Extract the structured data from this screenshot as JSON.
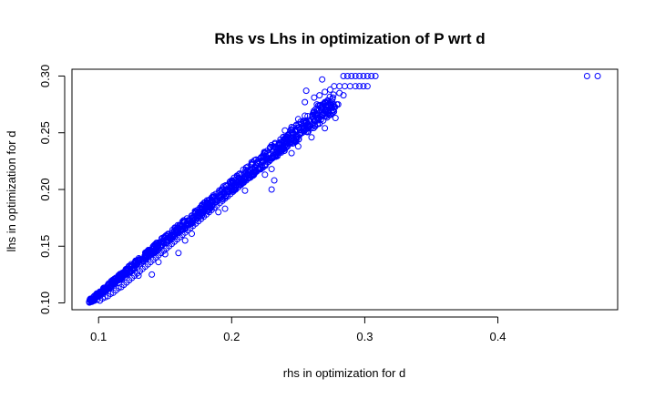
{
  "chart_data": {
    "type": "scatter",
    "title": "Rhs vs Lhs in optimization of P wrt d",
    "xlabel": "rhs in optimization for d",
    "ylabel": "lhs in optimization for d",
    "xlim": [
      0.08,
      0.49
    ],
    "ylim": [
      0.094,
      0.306
    ],
    "x_ticks": [
      0.1,
      0.2,
      0.3,
      0.4
    ],
    "x_tick_labels": [
      "0.1",
      "0.2",
      "0.3",
      "0.4"
    ],
    "y_ticks": [
      0.1,
      0.15,
      0.2,
      0.25,
      0.3
    ],
    "y_tick_labels": [
      "0.10",
      "0.15",
      "0.20",
      "0.25",
      "0.30"
    ],
    "grid": false,
    "legend": "none",
    "marker": "open-circle",
    "point_color": "#0000ff",
    "series": [
      {
        "points": [
          [
            0.093,
            0.101
          ],
          [
            0.095,
            0.101
          ],
          [
            0.097,
            0.102
          ],
          [
            0.099,
            0.103
          ],
          [
            0.101,
            0.102
          ],
          [
            0.103,
            0.104
          ],
          [
            0.105,
            0.105
          ],
          [
            0.107,
            0.106
          ],
          [
            0.109,
            0.108
          ],
          [
            0.111,
            0.109
          ],
          [
            0.113,
            0.111
          ],
          [
            0.115,
            0.113
          ],
          [
            0.117,
            0.114
          ],
          [
            0.119,
            0.116
          ],
          [
            0.121,
            0.118
          ],
          [
            0.123,
            0.12
          ],
          [
            0.125,
            0.122
          ],
          [
            0.127,
            0.124
          ],
          [
            0.129,
            0.126
          ],
          [
            0.131,
            0.128
          ],
          [
            0.133,
            0.13
          ],
          [
            0.135,
            0.132
          ],
          [
            0.137,
            0.134
          ],
          [
            0.139,
            0.136
          ],
          [
            0.141,
            0.138
          ],
          [
            0.143,
            0.14
          ],
          [
            0.145,
            0.142
          ],
          [
            0.147,
            0.144
          ],
          [
            0.149,
            0.146
          ],
          [
            0.151,
            0.148
          ],
          [
            0.153,
            0.15
          ],
          [
            0.155,
            0.152
          ],
          [
            0.157,
            0.154
          ],
          [
            0.159,
            0.156
          ],
          [
            0.161,
            0.158
          ],
          [
            0.163,
            0.16
          ],
          [
            0.165,
            0.162
          ],
          [
            0.167,
            0.164
          ],
          [
            0.169,
            0.166
          ],
          [
            0.171,
            0.168
          ],
          [
            0.173,
            0.17
          ],
          [
            0.175,
            0.172
          ],
          [
            0.177,
            0.174
          ],
          [
            0.179,
            0.176
          ],
          [
            0.181,
            0.178
          ],
          [
            0.183,
            0.18
          ],
          [
            0.185,
            0.182
          ],
          [
            0.187,
            0.184
          ],
          [
            0.189,
            0.186
          ],
          [
            0.191,
            0.188
          ],
          [
            0.193,
            0.19
          ],
          [
            0.195,
            0.192
          ],
          [
            0.197,
            0.194
          ],
          [
            0.199,
            0.196
          ],
          [
            0.201,
            0.198
          ],
          [
            0.203,
            0.2
          ],
          [
            0.205,
            0.202
          ],
          [
            0.207,
            0.204
          ],
          [
            0.209,
            0.206
          ],
          [
            0.211,
            0.208
          ],
          [
            0.213,
            0.21
          ],
          [
            0.215,
            0.212
          ],
          [
            0.217,
            0.214
          ],
          [
            0.219,
            0.216
          ],
          [
            0.221,
            0.218
          ],
          [
            0.223,
            0.22
          ],
          [
            0.225,
            0.222
          ],
          [
            0.227,
            0.224
          ],
          [
            0.229,
            0.226
          ],
          [
            0.231,
            0.228
          ],
          [
            0.233,
            0.23
          ],
          [
            0.235,
            0.232
          ],
          [
            0.237,
            0.234
          ],
          [
            0.239,
            0.236
          ],
          [
            0.241,
            0.238
          ],
          [
            0.243,
            0.24
          ],
          [
            0.245,
            0.242
          ],
          [
            0.247,
            0.244
          ],
          [
            0.249,
            0.246
          ],
          [
            0.251,
            0.248
          ],
          [
            0.253,
            0.25
          ],
          [
            0.255,
            0.252
          ],
          [
            0.257,
            0.254
          ],
          [
            0.259,
            0.256
          ],
          [
            0.261,
            0.258
          ],
          [
            0.263,
            0.26
          ],
          [
            0.265,
            0.262
          ],
          [
            0.267,
            0.264
          ],
          [
            0.269,
            0.266
          ],
          [
            0.271,
            0.268
          ],
          [
            0.273,
            0.27
          ],
          [
            0.275,
            0.272
          ],
          [
            0.277,
            0.273
          ],
          [
            0.279,
            0.275
          ],
          [
            0.115,
            0.12
          ],
          [
            0.125,
            0.13
          ],
          [
            0.14,
            0.146
          ],
          [
            0.155,
            0.162
          ],
          [
            0.17,
            0.177
          ],
          [
            0.185,
            0.193
          ],
          [
            0.2,
            0.208
          ],
          [
            0.215,
            0.224
          ],
          [
            0.23,
            0.239
          ],
          [
            0.245,
            0.255
          ],
          [
            0.255,
            0.265
          ],
          [
            0.265,
            0.274
          ],
          [
            0.24,
            0.252
          ],
          [
            0.25,
            0.262
          ],
          [
            0.13,
            0.124
          ],
          [
            0.15,
            0.143
          ],
          [
            0.17,
            0.161
          ],
          [
            0.19,
            0.18
          ],
          [
            0.21,
            0.199
          ],
          [
            0.23,
            0.218
          ],
          [
            0.245,
            0.232
          ],
          [
            0.26,
            0.246
          ],
          [
            0.27,
            0.254
          ],
          [
            0.278,
            0.263
          ],
          [
            0.145,
            0.136
          ],
          [
            0.165,
            0.155
          ],
          [
            0.195,
            0.183
          ],
          [
            0.225,
            0.213
          ],
          [
            0.25,
            0.238
          ],
          [
            0.232,
            0.208
          ],
          [
            0.23,
            0.2
          ],
          [
            0.14,
            0.125
          ],
          [
            0.16,
            0.144
          ],
          [
            0.262,
            0.281
          ],
          [
            0.266,
            0.283
          ],
          [
            0.27,
            0.286
          ],
          [
            0.274,
            0.288
          ],
          [
            0.276,
            0.281
          ],
          [
            0.281,
            0.285
          ],
          [
            0.27,
            0.277
          ],
          [
            0.28,
            0.275
          ],
          [
            0.284,
            0.283
          ],
          [
            0.268,
            0.272
          ],
          [
            0.274,
            0.266
          ],
          [
            0.262,
            0.268
          ],
          [
            0.277,
            0.291
          ],
          [
            0.281,
            0.291
          ],
          [
            0.285,
            0.291
          ],
          [
            0.289,
            0.291
          ],
          [
            0.293,
            0.291
          ],
          [
            0.296,
            0.291
          ],
          [
            0.299,
            0.291
          ],
          [
            0.302,
            0.291
          ],
          [
            0.284,
            0.3
          ],
          [
            0.287,
            0.3
          ],
          [
            0.29,
            0.3
          ],
          [
            0.293,
            0.3
          ],
          [
            0.296,
            0.3
          ],
          [
            0.299,
            0.3
          ],
          [
            0.302,
            0.3
          ],
          [
            0.305,
            0.3
          ],
          [
            0.308,
            0.3
          ],
          [
            0.268,
            0.297
          ],
          [
            0.256,
            0.287
          ],
          [
            0.255,
            0.277
          ],
          [
            0.264,
            0.275
          ],
          [
            0.467,
            0.3
          ],
          [
            0.475,
            0.3
          ]
        ]
      }
    ]
  }
}
